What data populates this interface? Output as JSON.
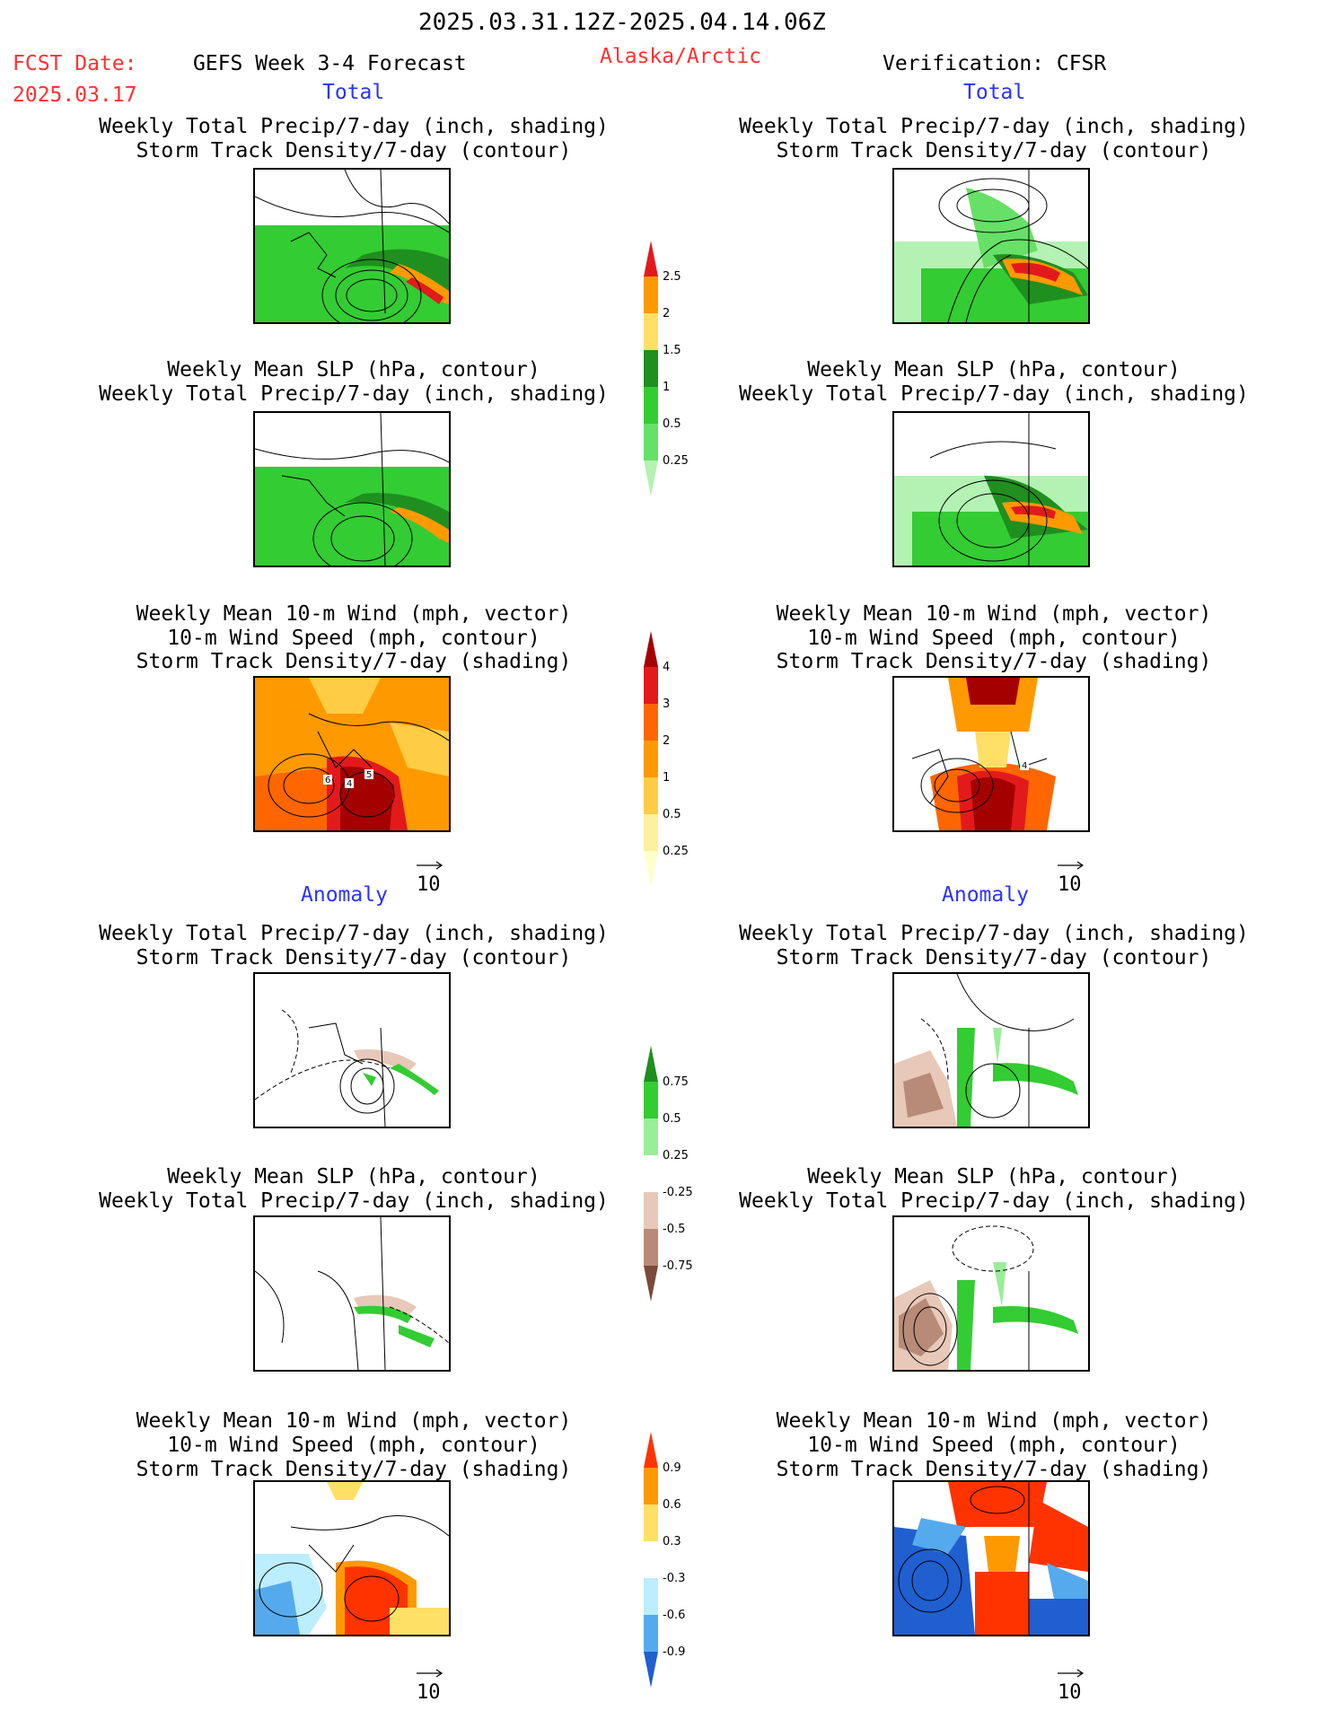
{
  "header": {
    "date_range": "2025.03.31.12Z-2025.04.14.06Z",
    "fcst_label": "FCST Date:",
    "fcst_date": "2025.03.17",
    "forecast_name": "GEFS Week 3-4 Forecast",
    "region": "Alaska/Arctic",
    "verification": "Verification: CFSR"
  },
  "sections": {
    "total_left": "Total",
    "total_right": "Total",
    "anomaly_left": "Anomaly",
    "anomaly_right": "Anomaly"
  },
  "panels": {
    "precip_storm": [
      "Weekly Total Precip/7-day (inch, shading)",
      "Storm Track Density/7-day (contour)"
    ],
    "slp_precip": [
      "Weekly Mean SLP (hPa, contour)",
      "Weekly Total Precip/7-day (inch, shading)"
    ],
    "wind_storm": [
      "Weekly Mean 10-m Wind (mph, vector)",
      "10-m Wind Speed (mph, contour)",
      "Storm Track Density/7-day (shading)"
    ]
  },
  "vector_ref": "10",
  "colorbars": {
    "precip_total": {
      "labels": [
        "2.5",
        "2",
        "1.5",
        "1",
        "0.5",
        "0.25"
      ],
      "colors": [
        "#e31a1c",
        "#ff9900",
        "#ffe066",
        "#1f8f1f",
        "#33cc33",
        "#66e066",
        "#b3f2b3"
      ]
    },
    "storm_total": {
      "labels": [
        "4",
        "3",
        "2",
        "1",
        "0.5",
        "0.25"
      ],
      "colors": [
        "#a50000",
        "#e31a1c",
        "#ff6600",
        "#ff9900",
        "#ffcc44",
        "#fff0a0",
        "#ffffcc"
      ]
    },
    "precip_anom": {
      "labels": [
        "0.75",
        "0.5",
        "0.25",
        "-0.25",
        "-0.5",
        "-0.75"
      ],
      "colors": [
        "#1f8f1f",
        "#33cc33",
        "#99ee99",
        "#ffffff",
        "#e8c8b8",
        "#b88a78",
        "#7a4a3a"
      ]
    },
    "storm_anom": {
      "labels": [
        "0.9",
        "0.6",
        "0.3",
        "-0.3",
        "-0.6",
        "-0.9"
      ],
      "colors": [
        "#ff3300",
        "#ff9900",
        "#ffe066",
        "#ffffff",
        "#bbeeff",
        "#55aaee",
        "#1f5fd0"
      ]
    }
  },
  "map_labels": {
    "l1": "6",
    "l2": "4",
    "l3": "5",
    "r1": "4"
  }
}
